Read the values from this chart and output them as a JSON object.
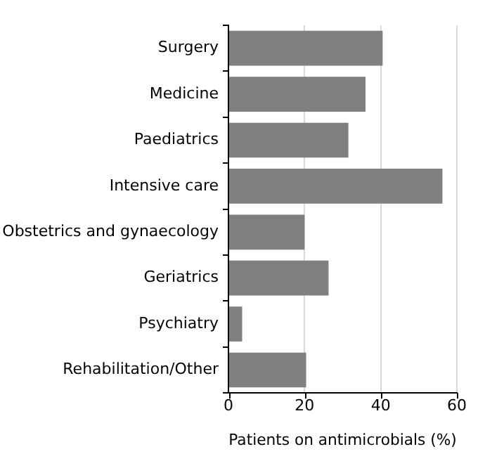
{
  "chart_data": {
    "type": "bar",
    "orientation": "horizontal",
    "xlabel": "Patients on antimicrobials (%)",
    "categories": [
      "Surgery",
      "Medicine",
      "Paediatrics",
      "Intensive care",
      "Obstetrics and gynaecology",
      "Geriatrics",
      "Psychiatry",
      "Rehabilitation/Other"
    ],
    "values": [
      40.5,
      36.0,
      31.5,
      56.2,
      20.0,
      26.3,
      3.6,
      20.4
    ],
    "color": "#808080",
    "xlim": [
      0,
      60
    ],
    "xticks": [
      0,
      20,
      40,
      60
    ],
    "grid": "x",
    "legend": false
  }
}
